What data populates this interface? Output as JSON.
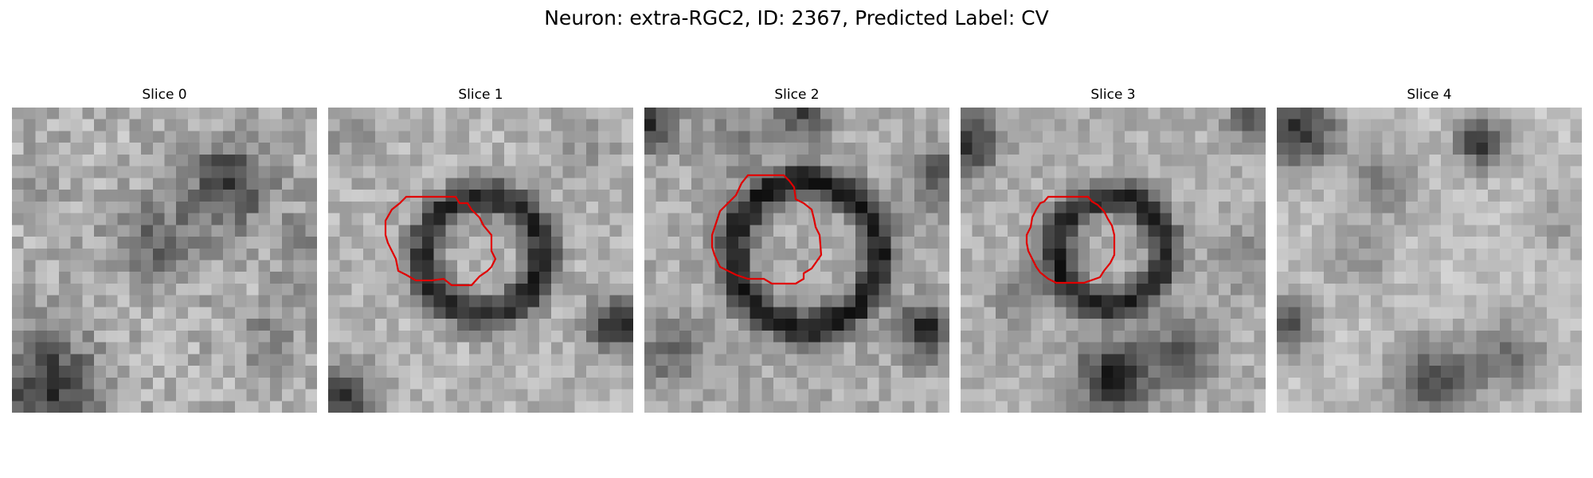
{
  "figure": {
    "title": "Neuron: extra-RGC2, ID: 2367, Predicted Label: CV"
  },
  "colors": {
    "contour": "#e00000",
    "background": "#ffffff"
  },
  "slices": [
    {
      "title": "Slice 0",
      "has_contour": false
    },
    {
      "title": "Slice 1",
      "has_contour": true
    },
    {
      "title": "Slice 2",
      "has_contour": true
    },
    {
      "title": "Slice 3",
      "has_contour": true
    },
    {
      "title": "Slice 4",
      "has_contour": false
    }
  ]
}
